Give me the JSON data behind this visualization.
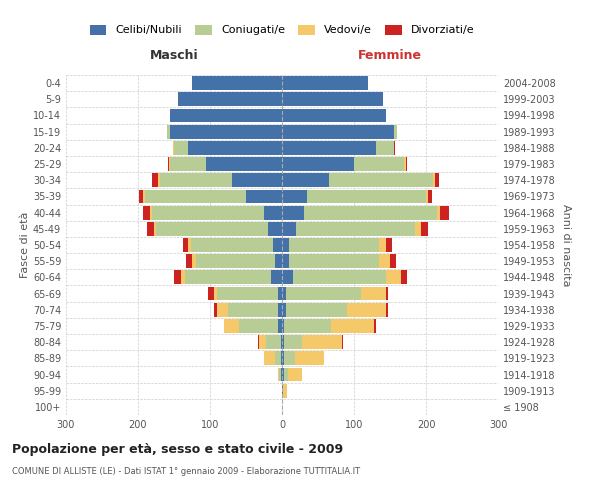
{
  "age_groups": [
    "100+",
    "95-99",
    "90-94",
    "85-89",
    "80-84",
    "75-79",
    "70-74",
    "65-69",
    "60-64",
    "55-59",
    "50-54",
    "45-49",
    "40-44",
    "35-39",
    "30-34",
    "25-29",
    "20-24",
    "15-19",
    "10-14",
    "5-9",
    "0-4"
  ],
  "birth_years": [
    "≤ 1908",
    "1909-1913",
    "1914-1918",
    "1919-1923",
    "1924-1928",
    "1929-1933",
    "1934-1938",
    "1939-1943",
    "1944-1948",
    "1949-1953",
    "1954-1958",
    "1959-1963",
    "1964-1968",
    "1969-1973",
    "1974-1978",
    "1979-1983",
    "1984-1988",
    "1989-1993",
    "1994-1998",
    "1999-2003",
    "2004-2008"
  ],
  "male_celibi": [
    0,
    0,
    1,
    2,
    2,
    5,
    5,
    5,
    15,
    10,
    12,
    20,
    25,
    50,
    70,
    105,
    130,
    155,
    155,
    145,
    125
  ],
  "male_coniugati": [
    0,
    0,
    3,
    8,
    20,
    55,
    70,
    85,
    120,
    110,
    115,
    155,
    155,
    140,
    100,
    50,
    20,
    5,
    0,
    0,
    0
  ],
  "male_vedovi": [
    0,
    0,
    2,
    15,
    10,
    20,
    15,
    5,
    5,
    5,
    3,
    3,
    3,
    3,
    2,
    2,
    1,
    0,
    0,
    0,
    0
  ],
  "male_divorziati": [
    0,
    0,
    0,
    0,
    2,
    0,
    5,
    8,
    10,
    8,
    8,
    10,
    10,
    5,
    8,
    2,
    0,
    0,
    0,
    0,
    0
  ],
  "female_celibi": [
    0,
    2,
    3,
    3,
    3,
    3,
    5,
    5,
    15,
    10,
    10,
    20,
    30,
    35,
    65,
    100,
    130,
    155,
    145,
    140,
    120
  ],
  "female_coniugati": [
    0,
    0,
    5,
    15,
    25,
    65,
    85,
    105,
    130,
    125,
    125,
    165,
    185,
    165,
    145,
    70,
    25,
    5,
    0,
    0,
    0
  ],
  "female_vedovi": [
    0,
    5,
    20,
    40,
    55,
    60,
    55,
    35,
    20,
    15,
    10,
    8,
    5,
    3,
    3,
    2,
    1,
    0,
    0,
    0,
    0
  ],
  "female_divorziati": [
    0,
    0,
    0,
    0,
    2,
    2,
    2,
    2,
    8,
    8,
    8,
    10,
    12,
    5,
    5,
    2,
    1,
    0,
    0,
    0,
    0
  ],
  "color_celibi": "#4472a8",
  "color_coniugati": "#b8cc96",
  "color_vedovi": "#f5c96a",
  "color_divorziati": "#cc2222",
  "title": "Popolazione per età, sesso e stato civile - 2009",
  "subtitle": "COMUNE DI ALLISTE (LE) - Dati ISTAT 1° gennaio 2009 - Elaborazione TUTTITALIA.IT",
  "xlabel_left": "Maschi",
  "xlabel_right": "Femmine",
  "ylabel_left": "Fasce di età",
  "ylabel_right": "Anni di nascita",
  "xlim": 300,
  "bg_color": "#ffffff",
  "grid_color": "#cccccc"
}
